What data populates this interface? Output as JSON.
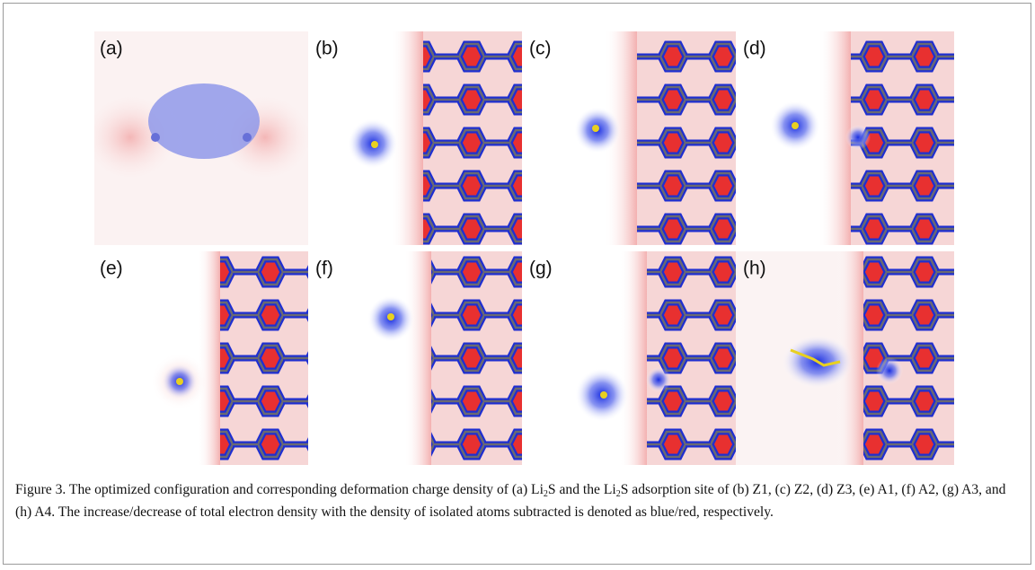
{
  "figure": {
    "panels": [
      {
        "label": "(a)"
      },
      {
        "label": "(b)"
      },
      {
        "label": "(c)"
      },
      {
        "label": "(d)"
      },
      {
        "label": "(e)"
      },
      {
        "label": "(f)"
      },
      {
        "label": "(g)"
      },
      {
        "label": "(h)"
      }
    ],
    "caption": [
      "Figure 3. The optimized configuration and corresponding deformation charge density of (a) Li",
      "2",
      "S and the Li",
      "2",
      "S adsorption site of (b) Z1, (c) Z2, (d) Z3, (e) A1, (f) A2, (g) A3, and (h) A4. The increase/decrease of total electron density with the density of isolated atoms subtracted is denoted as blue/red, respectively."
    ]
  }
}
